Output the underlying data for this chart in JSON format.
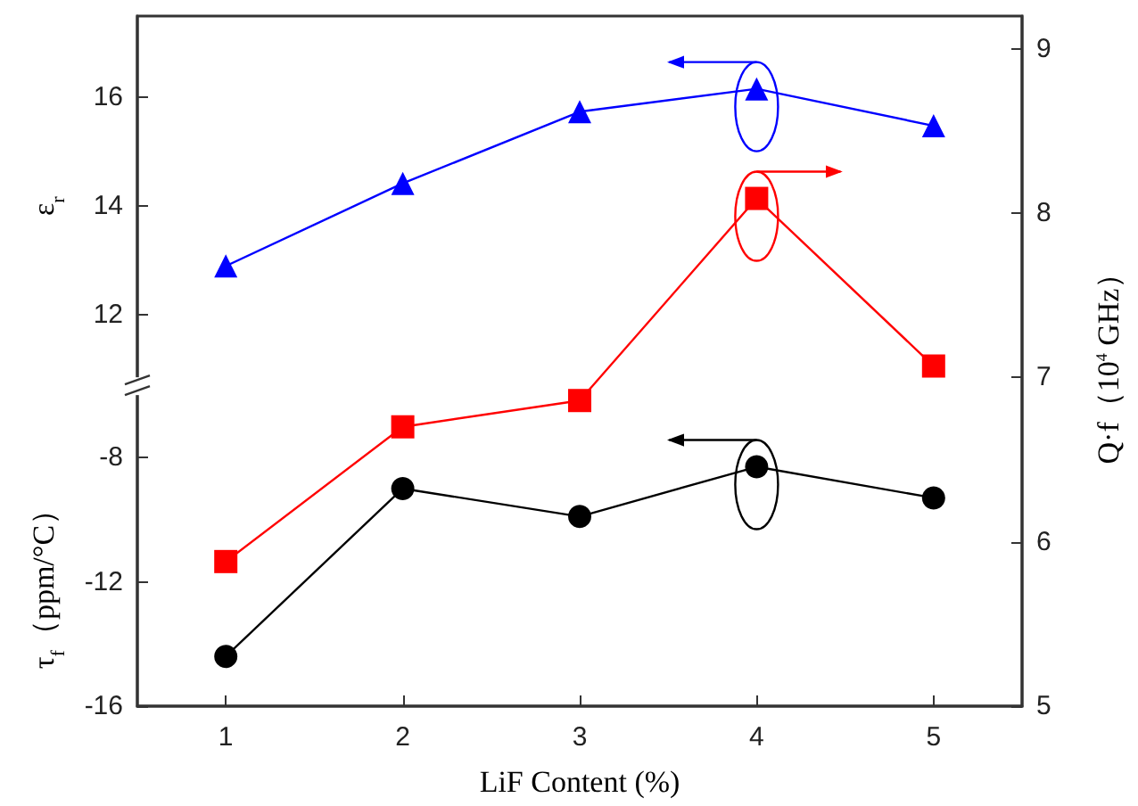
{
  "chart_data": {
    "type": "line",
    "xlabel": "LiF Content (%)",
    "ylabel": "τ$_{f}$（ppm/°C）",
    "y2label": "Q·f（10$^{4}$ GHz）",
    "y3label": "ε$_{r}$",
    "x": [
      1,
      2,
      3,
      4,
      5
    ],
    "xlim": [
      0.5,
      5.5
    ],
    "xticks": [
      1,
      2,
      3,
      4,
      5
    ],
    "ylim": [
      -16,
      6.2
    ],
    "yticks": [
      -16,
      -12,
      -8
    ],
    "y2lim": [
      5,
      9.2
    ],
    "y2ticks": [
      5,
      6,
      7,
      8,
      9
    ],
    "y3lim": [
      4.8,
      17.5
    ],
    "y3ticks": [
      12,
      14,
      16
    ],
    "series": [
      {
        "color": "#0000ff",
        "marker": "triangle",
        "axis": "y3",
        "values": [
          12.9,
          14.42,
          15.74,
          16.16,
          15.48
        ]
      },
      {
        "color": "#ff0000",
        "marker": "square",
        "axis": "y2",
        "values": [
          5.88,
          6.7,
          6.86,
          8.09,
          7.07
        ]
      },
      {
        "color": "#000000",
        "marker": "circle",
        "axis": "y",
        "values": [
          -14.4,
          -9.0,
          -9.9,
          -8.3,
          -9.3
        ]
      }
    ],
    "grid": false,
    "line_style": "solid"
  }
}
